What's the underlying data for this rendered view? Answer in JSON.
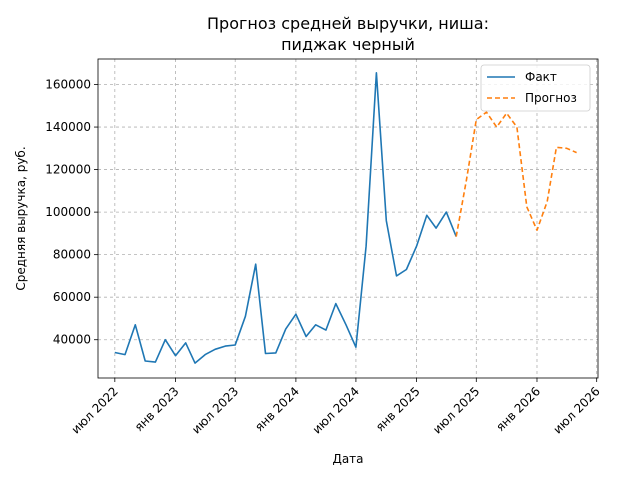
{
  "chart_data": {
    "type": "line",
    "title": "Прогноз средней выручки, ниша:\nпиджак черный",
    "title_lines": [
      "Прогноз средней выручки, ниша:",
      "пиджак черный"
    ],
    "xlabel": "Дата",
    "ylabel": "Средняя выручка, руб.",
    "xlim": [
      "2022-05-11",
      "2026-07-05"
    ],
    "ylim": [
      22000,
      172000
    ],
    "grid": true,
    "legend_position": "top-right",
    "y_ticks": [
      40000,
      60000,
      80000,
      100000,
      120000,
      140000,
      160000
    ],
    "y_tick_labels": [
      "40000",
      "60000",
      "80000",
      "100000",
      "120000",
      "140000",
      "160000"
    ],
    "x_ticks": [
      "2022-07-01",
      "2023-01-01",
      "2023-07-01",
      "2024-01-01",
      "2024-07-01",
      "2025-01-01",
      "2025-07-01",
      "2026-01-01",
      "2026-07-01"
    ],
    "x_tick_labels": [
      "июл 2022",
      "янв 2023",
      "июл 2023",
      "янв 2024",
      "июл 2024",
      "янв 2025",
      "июл 2025",
      "янв 2026",
      "июл 2026"
    ],
    "series": [
      {
        "name": "Факт",
        "color": "#1f77b4",
        "style": "solid",
        "x": [
          "2022-07-01",
          "2022-08-01",
          "2022-09-01",
          "2022-10-01",
          "2022-11-01",
          "2022-12-01",
          "2023-01-01",
          "2023-02-01",
          "2023-03-01",
          "2023-04-01",
          "2023-05-01",
          "2023-06-01",
          "2023-07-01",
          "2023-08-01",
          "2023-09-01",
          "2023-10-01",
          "2023-11-01",
          "2023-12-01",
          "2024-01-01",
          "2024-02-01",
          "2024-03-01",
          "2024-04-01",
          "2024-05-01",
          "2024-06-01",
          "2024-07-01",
          "2024-08-01",
          "2024-09-01",
          "2024-10-01",
          "2024-11-01",
          "2024-12-01",
          "2025-01-01",
          "2025-02-01",
          "2025-03-01",
          "2025-04-01",
          "2025-05-01"
        ],
        "y": [
          34000,
          33000,
          47000,
          30000,
          29500,
          40000,
          32500,
          38500,
          29000,
          33000,
          35500,
          37000,
          37500,
          51000,
          75500,
          33500,
          33800,
          45000,
          52000,
          41500,
          47000,
          44500,
          57000,
          47000,
          36500,
          84000,
          165500,
          96000,
          70000,
          73000,
          84000,
          98500,
          92500,
          100000,
          88500
        ]
      },
      {
        "name": "Прогноз",
        "color": "#ff7f0e",
        "style": "dashed",
        "x": [
          "2025-05-01",
          "2025-06-01",
          "2025-07-01",
          "2025-08-01",
          "2025-09-01",
          "2025-10-01",
          "2025-11-01",
          "2025-12-01",
          "2026-01-01",
          "2026-02-01",
          "2026-03-01",
          "2026-04-01",
          "2026-05-01"
        ],
        "y": [
          88500,
          115000,
          143500,
          147000,
          140000,
          146500,
          140000,
          102500,
          91500,
          105000,
          130500,
          130000,
          128000
        ]
      }
    ]
  }
}
